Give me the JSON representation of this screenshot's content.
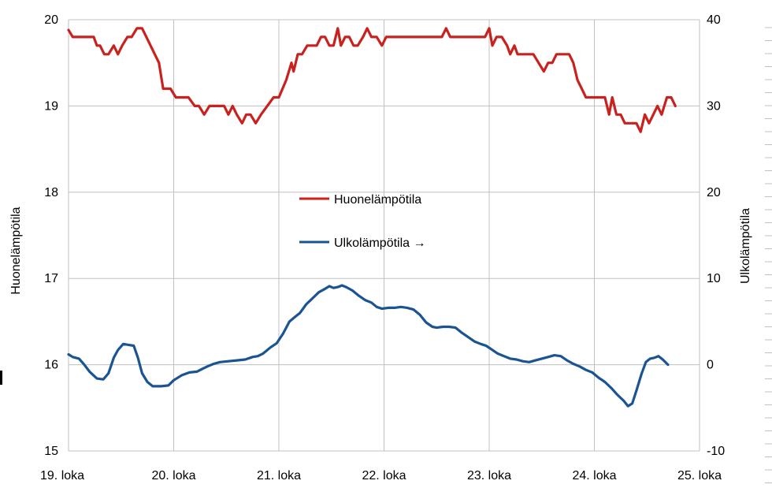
{
  "chart_data": {
    "type": "line",
    "title": "",
    "xlabel": "",
    "ylabel": "Huonelämpötila",
    "y2label": "Ulkolämpötila",
    "x_tick_labels": [
      "19. loka",
      "20. loka",
      "21. loka",
      "22. loka",
      "23. loka",
      "24. loka",
      "25. loka"
    ],
    "xlim": [
      0,
      6
    ],
    "ylim": [
      15,
      20
    ],
    "y_ticks": [
      "15",
      "16",
      "17",
      "18",
      "19",
      "20"
    ],
    "y2lim": [
      -10,
      40
    ],
    "y2_ticks": [
      "-10",
      "0",
      "10",
      "20",
      "30",
      "40"
    ],
    "grid": true,
    "legend_position": "center",
    "series": [
      {
        "name": "Huonelämpötila",
        "axis": "left",
        "color": "#c9211e",
        "points": [
          [
            0.0,
            19.88
          ],
          [
            0.04,
            19.8
          ],
          [
            0.1,
            19.8
          ],
          [
            0.18,
            19.8
          ],
          [
            0.24,
            19.8
          ],
          [
            0.27,
            19.7
          ],
          [
            0.3,
            19.7
          ],
          [
            0.34,
            19.6
          ],
          [
            0.38,
            19.6
          ],
          [
            0.43,
            19.7
          ],
          [
            0.47,
            19.6
          ],
          [
            0.51,
            19.7
          ],
          [
            0.56,
            19.8
          ],
          [
            0.6,
            19.8
          ],
          [
            0.65,
            19.9
          ],
          [
            0.7,
            19.9
          ],
          [
            0.74,
            19.8
          ],
          [
            0.8,
            19.65
          ],
          [
            0.86,
            19.5
          ],
          [
            0.9,
            19.2
          ],
          [
            0.97,
            19.2
          ],
          [
            1.02,
            19.1
          ],
          [
            1.08,
            19.1
          ],
          [
            1.14,
            19.1
          ],
          [
            1.2,
            19.0
          ],
          [
            1.24,
            19.0
          ],
          [
            1.29,
            18.9
          ],
          [
            1.34,
            19.0
          ],
          [
            1.42,
            19.0
          ],
          [
            1.48,
            19.0
          ],
          [
            1.52,
            18.9
          ],
          [
            1.56,
            19.0
          ],
          [
            1.6,
            18.9
          ],
          [
            1.65,
            18.8
          ],
          [
            1.69,
            18.9
          ],
          [
            1.73,
            18.9
          ],
          [
            1.78,
            18.8
          ],
          [
            1.83,
            18.9
          ],
          [
            1.89,
            19.0
          ],
          [
            1.95,
            19.1
          ],
          [
            2.0,
            19.1
          ],
          [
            2.07,
            19.3
          ],
          [
            2.12,
            19.5
          ],
          [
            2.14,
            19.4
          ],
          [
            2.18,
            19.6
          ],
          [
            2.22,
            19.6
          ],
          [
            2.27,
            19.7
          ],
          [
            2.32,
            19.7
          ],
          [
            2.36,
            19.7
          ],
          [
            2.4,
            19.8
          ],
          [
            2.44,
            19.8
          ],
          [
            2.48,
            19.7
          ],
          [
            2.52,
            19.7
          ],
          [
            2.56,
            19.9
          ],
          [
            2.59,
            19.7
          ],
          [
            2.63,
            19.8
          ],
          [
            2.67,
            19.8
          ],
          [
            2.71,
            19.7
          ],
          [
            2.75,
            19.7
          ],
          [
            2.8,
            19.8
          ],
          [
            2.84,
            19.9
          ],
          [
            2.88,
            19.8
          ],
          [
            2.93,
            19.8
          ],
          [
            2.98,
            19.7
          ],
          [
            3.02,
            19.8
          ],
          [
            3.1,
            19.8
          ],
          [
            3.2,
            19.8
          ],
          [
            3.3,
            19.8
          ],
          [
            3.4,
            19.8
          ],
          [
            3.5,
            19.8
          ],
          [
            3.55,
            19.8
          ],
          [
            3.59,
            19.9
          ],
          [
            3.63,
            19.8
          ],
          [
            3.7,
            19.8
          ],
          [
            3.8,
            19.8
          ],
          [
            3.9,
            19.8
          ],
          [
            3.96,
            19.8
          ],
          [
            4.0,
            19.9
          ],
          [
            4.03,
            19.7
          ],
          [
            4.07,
            19.8
          ],
          [
            4.12,
            19.8
          ],
          [
            4.17,
            19.7
          ],
          [
            4.2,
            19.6
          ],
          [
            4.24,
            19.7
          ],
          [
            4.27,
            19.6
          ],
          [
            4.32,
            19.6
          ],
          [
            4.37,
            19.6
          ],
          [
            4.42,
            19.6
          ],
          [
            4.47,
            19.5
          ],
          [
            4.52,
            19.4
          ],
          [
            4.56,
            19.5
          ],
          [
            4.6,
            19.5
          ],
          [
            4.64,
            19.6
          ],
          [
            4.7,
            19.6
          ],
          [
            4.76,
            19.6
          ],
          [
            4.8,
            19.5
          ],
          [
            4.84,
            19.3
          ],
          [
            4.88,
            19.2
          ],
          [
            4.92,
            19.1
          ],
          [
            5.0,
            19.1
          ],
          [
            5.05,
            19.1
          ],
          [
            5.1,
            19.1
          ],
          [
            5.14,
            18.9
          ],
          [
            5.17,
            19.1
          ],
          [
            5.21,
            18.9
          ],
          [
            5.25,
            18.9
          ],
          [
            5.29,
            18.8
          ],
          [
            5.35,
            18.8
          ],
          [
            5.4,
            18.8
          ],
          [
            5.44,
            18.7
          ],
          [
            5.48,
            18.9
          ],
          [
            5.52,
            18.8
          ],
          [
            5.56,
            18.9
          ],
          [
            5.6,
            19.0
          ],
          [
            5.64,
            18.9
          ],
          [
            5.69,
            19.1
          ],
          [
            5.73,
            19.1
          ],
          [
            5.77,
            19.0
          ]
        ]
      },
      {
        "name": "Ulkolämpötila →",
        "axis": "right",
        "color": "#1a5493",
        "points": [
          [
            0.0,
            1.2
          ],
          [
            0.04,
            0.9
          ],
          [
            0.1,
            0.7
          ],
          [
            0.15,
            0.0
          ],
          [
            0.2,
            -0.8
          ],
          [
            0.27,
            -1.6
          ],
          [
            0.33,
            -1.7
          ],
          [
            0.38,
            -1.0
          ],
          [
            0.43,
            0.8
          ],
          [
            0.47,
            1.7
          ],
          [
            0.52,
            2.4
          ],
          [
            0.57,
            2.3
          ],
          [
            0.62,
            2.2
          ],
          [
            0.66,
            0.8
          ],
          [
            0.7,
            -1.0
          ],
          [
            0.75,
            -2.0
          ],
          [
            0.8,
            -2.5
          ],
          [
            0.88,
            -2.5
          ],
          [
            0.95,
            -2.4
          ],
          [
            1.0,
            -1.8
          ],
          [
            1.08,
            -1.2
          ],
          [
            1.15,
            -0.9
          ],
          [
            1.22,
            -0.8
          ],
          [
            1.27,
            -0.5
          ],
          [
            1.32,
            -0.2
          ],
          [
            1.38,
            0.1
          ],
          [
            1.44,
            0.3
          ],
          [
            1.52,
            0.4
          ],
          [
            1.6,
            0.5
          ],
          [
            1.68,
            0.6
          ],
          [
            1.75,
            0.9
          ],
          [
            1.8,
            1.0
          ],
          [
            1.85,
            1.3
          ],
          [
            1.92,
            2.0
          ],
          [
            1.98,
            2.5
          ],
          [
            2.04,
            3.6
          ],
          [
            2.1,
            5.0
          ],
          [
            2.15,
            5.5
          ],
          [
            2.2,
            6.0
          ],
          [
            2.26,
            7.0
          ],
          [
            2.32,
            7.7
          ],
          [
            2.38,
            8.4
          ],
          [
            2.44,
            8.8
          ],
          [
            2.48,
            9.1
          ],
          [
            2.52,
            8.9
          ],
          [
            2.56,
            9.0
          ],
          [
            2.6,
            9.2
          ],
          [
            2.64,
            9.0
          ],
          [
            2.7,
            8.6
          ],
          [
            2.76,
            8.0
          ],
          [
            2.82,
            7.5
          ],
          [
            2.88,
            7.2
          ],
          [
            2.93,
            6.7
          ],
          [
            2.98,
            6.5
          ],
          [
            3.04,
            6.6
          ],
          [
            3.1,
            6.6
          ],
          [
            3.16,
            6.7
          ],
          [
            3.22,
            6.6
          ],
          [
            3.28,
            6.4
          ],
          [
            3.34,
            5.8
          ],
          [
            3.4,
            4.9
          ],
          [
            3.46,
            4.4
          ],
          [
            3.5,
            4.3
          ],
          [
            3.56,
            4.4
          ],
          [
            3.62,
            4.4
          ],
          [
            3.68,
            4.3
          ],
          [
            3.74,
            3.7
          ],
          [
            3.8,
            3.2
          ],
          [
            3.86,
            2.7
          ],
          [
            3.92,
            2.4
          ],
          [
            3.97,
            2.2
          ],
          [
            4.02,
            1.8
          ],
          [
            4.08,
            1.3
          ],
          [
            4.14,
            1.0
          ],
          [
            4.2,
            0.7
          ],
          [
            4.26,
            0.6
          ],
          [
            4.32,
            0.4
          ],
          [
            4.38,
            0.3
          ],
          [
            4.44,
            0.5
          ],
          [
            4.5,
            0.7
          ],
          [
            4.56,
            0.9
          ],
          [
            4.62,
            1.1
          ],
          [
            4.68,
            1.0
          ],
          [
            4.74,
            0.5
          ],
          [
            4.8,
            0.1
          ],
          [
            4.86,
            -0.2
          ],
          [
            4.92,
            -0.6
          ],
          [
            4.98,
            -0.9
          ],
          [
            5.04,
            -1.5
          ],
          [
            5.1,
            -2.0
          ],
          [
            5.16,
            -2.7
          ],
          [
            5.22,
            -3.5
          ],
          [
            5.28,
            -4.2
          ],
          [
            5.32,
            -4.8
          ],
          [
            5.36,
            -4.5
          ],
          [
            5.4,
            -3.0
          ],
          [
            5.45,
            -1.0
          ],
          [
            5.49,
            0.3
          ],
          [
            5.53,
            0.7
          ],
          [
            5.57,
            0.8
          ],
          [
            5.61,
            1.0
          ],
          [
            5.65,
            0.6
          ],
          [
            5.7,
            0.0
          ]
        ]
      }
    ]
  }
}
